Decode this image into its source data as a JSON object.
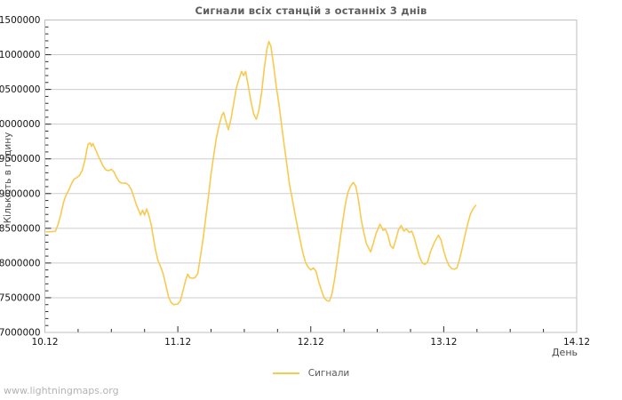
{
  "title": "Сигнали всіх станцій з останніх 3 днів",
  "watermark": "www.lightningmaps.org",
  "colors": {
    "background": "#ffffff",
    "line": "#f8ca50",
    "grid": "#cdcdcd",
    "border": "#bfbfbf",
    "tick": "#2a2a2a",
    "tick_text": "#141414",
    "title_text": "#5e5e5e",
    "axis_title_text": "#4a4a4a",
    "legend_text": "#595959",
    "watermark_text": "#b3b3b3"
  },
  "chart_data": {
    "type": "line",
    "title": "Сигнали всіх станцій з останніх 3 днів",
    "xlabel": "День",
    "ylabel": "Кількість в годину",
    "legend": [
      {
        "label": "Сигнали",
        "color": "#f8ca50",
        "position": "bottom-center"
      }
    ],
    "grid": "horizontal-major-only",
    "xlim": [
      0,
      4
    ],
    "x_ticks": {
      "values": [
        0,
        1,
        2,
        3,
        4
      ],
      "labels": [
        "10.12",
        "11.12",
        "12.12",
        "13.12",
        "14.12"
      ]
    },
    "x_minor_step": 0.25,
    "ylim": [
      7000000,
      11500000
    ],
    "y_ticks": [
      11500000,
      11000000,
      10500000,
      10000000,
      9500000,
      9000000,
      8500000,
      8000000,
      7500000,
      7000000
    ],
    "y_tick_labels": [
      "11500000",
      "11000000",
      "10500000",
      "10000000",
      "9500000",
      "9000000",
      "8500000",
      "8000000",
      "7500000",
      "7000000"
    ],
    "y_minor_step": 100000,
    "series": [
      {
        "name": "Сигнали",
        "color": "#f8ca50",
        "points": [
          [
            0.01,
            8450000
          ],
          [
            0.05,
            8450000
          ],
          [
            0.08,
            8460000
          ],
          [
            0.1,
            8560000
          ],
          [
            0.12,
            8700000
          ],
          [
            0.14,
            8870000
          ],
          [
            0.16,
            8980000
          ],
          [
            0.18,
            9050000
          ],
          [
            0.2,
            9140000
          ],
          [
            0.22,
            9210000
          ],
          [
            0.24,
            9230000
          ],
          [
            0.26,
            9260000
          ],
          [
            0.28,
            9330000
          ],
          [
            0.3,
            9470000
          ],
          [
            0.315,
            9620000
          ],
          [
            0.325,
            9710000
          ],
          [
            0.34,
            9730000
          ],
          [
            0.35,
            9680000
          ],
          [
            0.36,
            9720000
          ],
          [
            0.38,
            9640000
          ],
          [
            0.4,
            9550000
          ],
          [
            0.42,
            9470000
          ],
          [
            0.44,
            9390000
          ],
          [
            0.46,
            9340000
          ],
          [
            0.48,
            9330000
          ],
          [
            0.5,
            9350000
          ],
          [
            0.52,
            9310000
          ],
          [
            0.54,
            9230000
          ],
          [
            0.56,
            9170000
          ],
          [
            0.58,
            9150000
          ],
          [
            0.61,
            9150000
          ],
          [
            0.63,
            9120000
          ],
          [
            0.65,
            9060000
          ],
          [
            0.67,
            8950000
          ],
          [
            0.69,
            8830000
          ],
          [
            0.71,
            8740000
          ],
          [
            0.72,
            8690000
          ],
          [
            0.735,
            8760000
          ],
          [
            0.75,
            8690000
          ],
          [
            0.765,
            8780000
          ],
          [
            0.78,
            8700000
          ],
          [
            0.8,
            8550000
          ],
          [
            0.815,
            8380000
          ],
          [
            0.83,
            8210000
          ],
          [
            0.85,
            8040000
          ],
          [
            0.87,
            7950000
          ],
          [
            0.89,
            7840000
          ],
          [
            0.91,
            7680000
          ],
          [
            0.93,
            7510000
          ],
          [
            0.95,
            7430000
          ],
          [
            0.97,
            7400000
          ],
          [
            1.0,
            7410000
          ],
          [
            1.02,
            7460000
          ],
          [
            1.04,
            7610000
          ],
          [
            1.06,
            7760000
          ],
          [
            1.075,
            7840000
          ],
          [
            1.09,
            7790000
          ],
          [
            1.11,
            7780000
          ],
          [
            1.13,
            7790000
          ],
          [
            1.15,
            7850000
          ],
          [
            1.17,
            8100000
          ],
          [
            1.19,
            8350000
          ],
          [
            1.21,
            8650000
          ],
          [
            1.23,
            8950000
          ],
          [
            1.25,
            9280000
          ],
          [
            1.27,
            9550000
          ],
          [
            1.29,
            9800000
          ],
          [
            1.31,
            9980000
          ],
          [
            1.33,
            10120000
          ],
          [
            1.345,
            10170000
          ],
          [
            1.36,
            10050000
          ],
          [
            1.38,
            9920000
          ],
          [
            1.4,
            10080000
          ],
          [
            1.42,
            10300000
          ],
          [
            1.44,
            10520000
          ],
          [
            1.46,
            10650000
          ],
          [
            1.48,
            10760000
          ],
          [
            1.495,
            10700000
          ],
          [
            1.51,
            10760000
          ],
          [
            1.53,
            10550000
          ],
          [
            1.55,
            10330000
          ],
          [
            1.57,
            10150000
          ],
          [
            1.59,
            10070000
          ],
          [
            1.61,
            10200000
          ],
          [
            1.63,
            10450000
          ],
          [
            1.65,
            10800000
          ],
          [
            1.67,
            11080000
          ],
          [
            1.685,
            11190000
          ],
          [
            1.7,
            11120000
          ],
          [
            1.72,
            10850000
          ],
          [
            1.74,
            10550000
          ],
          [
            1.76,
            10300000
          ],
          [
            1.78,
            10000000
          ],
          [
            1.8,
            9700000
          ],
          [
            1.82,
            9420000
          ],
          [
            1.84,
            9130000
          ],
          [
            1.86,
            8930000
          ],
          [
            1.88,
            8720000
          ],
          [
            1.9,
            8520000
          ],
          [
            1.92,
            8330000
          ],
          [
            1.94,
            8150000
          ],
          [
            1.96,
            8010000
          ],
          [
            1.98,
            7940000
          ],
          [
            2.0,
            7900000
          ],
          [
            2.02,
            7930000
          ],
          [
            2.04,
            7880000
          ],
          [
            2.06,
            7730000
          ],
          [
            2.08,
            7610000
          ],
          [
            2.1,
            7500000
          ],
          [
            2.12,
            7460000
          ],
          [
            2.14,
            7450000
          ],
          [
            2.16,
            7560000
          ],
          [
            2.18,
            7780000
          ],
          [
            2.2,
            8050000
          ],
          [
            2.22,
            8330000
          ],
          [
            2.24,
            8600000
          ],
          [
            2.26,
            8850000
          ],
          [
            2.28,
            9020000
          ],
          [
            2.3,
            9110000
          ],
          [
            2.32,
            9160000
          ],
          [
            2.34,
            9100000
          ],
          [
            2.36,
            8890000
          ],
          [
            2.38,
            8620000
          ],
          [
            2.4,
            8430000
          ],
          [
            2.42,
            8270000
          ],
          [
            2.45,
            8160000
          ],
          [
            2.47,
            8280000
          ],
          [
            2.49,
            8420000
          ],
          [
            2.52,
            8560000
          ],
          [
            2.545,
            8470000
          ],
          [
            2.56,
            8490000
          ],
          [
            2.58,
            8400000
          ],
          [
            2.6,
            8250000
          ],
          [
            2.62,
            8210000
          ],
          [
            2.64,
            8340000
          ],
          [
            2.66,
            8480000
          ],
          [
            2.68,
            8540000
          ],
          [
            2.7,
            8460000
          ],
          [
            2.72,
            8490000
          ],
          [
            2.74,
            8440000
          ],
          [
            2.76,
            8460000
          ],
          [
            2.78,
            8350000
          ],
          [
            2.8,
            8210000
          ],
          [
            2.82,
            8080000
          ],
          [
            2.84,
            8000000
          ],
          [
            2.86,
            7980000
          ],
          [
            2.88,
            8020000
          ],
          [
            2.9,
            8160000
          ],
          [
            2.93,
            8300000
          ],
          [
            2.96,
            8400000
          ],
          [
            2.98,
            8330000
          ],
          [
            3.0,
            8170000
          ],
          [
            3.02,
            8050000
          ],
          [
            3.04,
            7960000
          ],
          [
            3.06,
            7920000
          ],
          [
            3.08,
            7910000
          ],
          [
            3.1,
            7930000
          ],
          [
            3.12,
            8060000
          ],
          [
            3.14,
            8220000
          ],
          [
            3.16,
            8400000
          ],
          [
            3.18,
            8560000
          ],
          [
            3.2,
            8700000
          ],
          [
            3.22,
            8780000
          ],
          [
            3.24,
            8830000
          ]
        ]
      }
    ]
  }
}
